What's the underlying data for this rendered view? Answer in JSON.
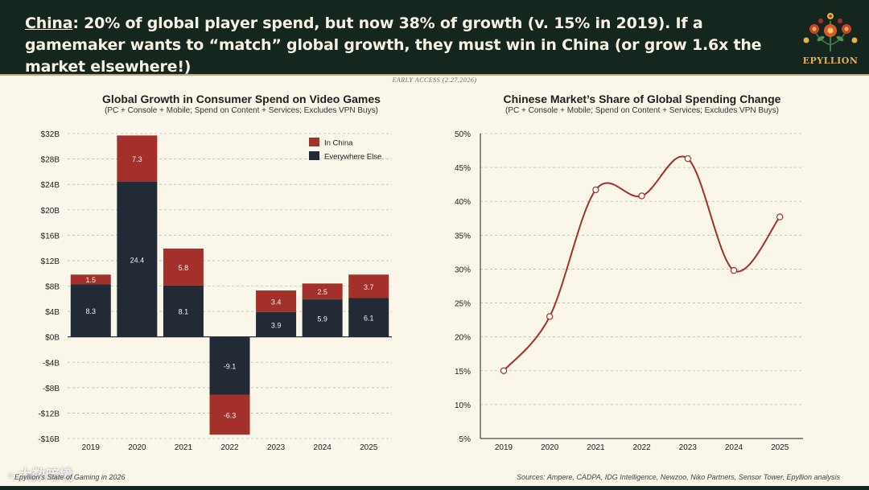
{
  "header": {
    "headline_prefix": "China",
    "headline_rest": ": 20% of global player spend, but now 38% of growth (v. 15% in 2019). If a gamemaker wants to “match” global growth, they must win in China (or grow 1.6x the market elsewhere!)",
    "brand_name": "EPYLLION",
    "bg_color": "#14261e"
  },
  "access_note": "EARLY ACCESS (2.27.2026)",
  "charts": {
    "left": {
      "title": "Global Growth in Consumer Spend on Video Games",
      "subtitle": "(PC + Console + Mobile; Spend on Content + Services; Excludes VPN Buys)"
    },
    "right": {
      "title": "Chinese Market’s Share of Global Spending Change",
      "subtitle": "(PC + Console + Mobile; Spend on Content + Services; Excludes VPN Buys)"
    }
  },
  "chart_data": [
    {
      "type": "bar",
      "stacked": true,
      "title": "Global Growth in Consumer Spend on Video Games",
      "subtitle": "(PC + Console + Mobile; Spend on Content + Services; Excludes VPN Buys)",
      "categories": [
        "2019",
        "2020",
        "2021",
        "2022",
        "2023",
        "2024",
        "2025"
      ],
      "series": [
        {
          "name": "Everywhere Else",
          "color": "#222a35",
          "values": [
            8.3,
            24.4,
            8.1,
            -9.1,
            3.9,
            5.9,
            6.1
          ],
          "labels": [
            "8.3",
            "24.4",
            "8.1",
            "-9.1",
            "3.9",
            "5.9",
            "6.1"
          ]
        },
        {
          "name": "In China",
          "color": "#a3302b",
          "values": [
            1.5,
            7.3,
            5.8,
            -6.3,
            3.4,
            2.5,
            3.7
          ],
          "labels": [
            "1.5",
            "7.3",
            "5.8",
            "-6.3",
            "3.4",
            "2.5",
            "3.7"
          ]
        }
      ],
      "legend_order": [
        "In China",
        "Everywhere Else"
      ],
      "ylim": [
        -16,
        32
      ],
      "yticks": [
        32,
        28,
        24,
        20,
        16,
        12,
        8,
        4,
        0,
        -4,
        -8,
        -12,
        -16
      ],
      "ytick_labels": [
        "$32B",
        "$28B",
        "$24B",
        "$20B",
        "$16B",
        "$12B",
        "$8B",
        "$4B",
        "$0B",
        "-$4B",
        "-$8B",
        "-$12B",
        "-$16B"
      ],
      "grid": true,
      "legend_position": "top-right"
    },
    {
      "type": "line",
      "smooth": true,
      "title": "Chinese Market’s Share of Global Spending Change",
      "subtitle": "(PC + Console + Mobile; Spend on Content + Services; Excludes VPN Buys)",
      "x": [
        "2019",
        "2020",
        "2021",
        "2022",
        "2023",
        "2024",
        "2025"
      ],
      "series": [
        {
          "color": "#a3302b",
          "values": [
            15,
            23,
            41.7,
            40.8,
            46.3,
            29.8,
            37.7
          ]
        }
      ],
      "ylim": [
        5,
        50
      ],
      "yticks": [
        50,
        45,
        40,
        35,
        30,
        25,
        20,
        15,
        10,
        5
      ],
      "ytick_labels": [
        "50%",
        "45%",
        "40%",
        "35%",
        "30%",
        "25%",
        "20%",
        "15%",
        "10%",
        "5%"
      ],
      "grid": true
    }
  ],
  "footer": {
    "left": "Epyllion’s State of Gaming in 2026",
    "right": "Sources: Ampere, CADPA, IDG Intelligence, Newzoo, Niko Partners, Sensor Tower, Epyllion analysis"
  },
  "watermark": {
    "text": "大数暗境"
  }
}
